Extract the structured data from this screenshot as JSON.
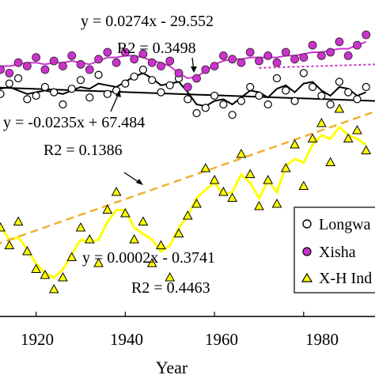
{
  "chart_data": {
    "type": "scatter",
    "xlabel": "Year",
    "xlim": [
      1908,
      1996
    ],
    "x_ticks": [
      1920,
      1940,
      1960,
      1980
    ],
    "series": [
      {
        "name": "Longwa",
        "marker": "open-circle",
        "color": "#000000",
        "x": [
          1908,
          1910,
          1912,
          1914,
          1916,
          1918,
          1920,
          1922,
          1924,
          1926,
          1928,
          1930,
          1932,
          1934,
          1936,
          1938,
          1940,
          1942,
          1944,
          1946,
          1948,
          1950,
          1952,
          1954,
          1956,
          1958,
          1960,
          1962,
          1964,
          1966,
          1968,
          1970,
          1972,
          1974,
          1976,
          1978,
          1980,
          1982,
          1984,
          1986,
          1988,
          1990,
          1992,
          1994
        ],
        "y": [
          0.92,
          0.98,
          0.96,
          1.02,
          1.05,
          0.93,
          0.95,
          1.0,
          0.97,
          0.9,
          0.99,
          1.04,
          0.94,
          1.07,
          0.96,
          0.98,
          1.02,
          1.06,
          1.1,
          1.04,
          0.97,
          1.01,
          1.05,
          0.93,
          0.85,
          0.88,
          0.95,
          0.9,
          0.84,
          0.92,
          1.0,
          0.95,
          0.9,
          1.05,
          0.98,
          0.92,
          1.08,
          1.0,
          0.95,
          0.9,
          1.03,
          0.97,
          0.93,
          1.0
        ]
      },
      {
        "name": "Xisha",
        "marker": "filled-circle",
        "color": "#cc33cc",
        "x": [
          1908,
          1910,
          1912,
          1914,
          1916,
          1918,
          1920,
          1922,
          1924,
          1926,
          1928,
          1930,
          1932,
          1934,
          1936,
          1938,
          1940,
          1942,
          1944,
          1946,
          1948,
          1950,
          1952,
          1954,
          1956,
          1958,
          1960,
          1962,
          1964,
          1966,
          1968,
          1970,
          1972,
          1974,
          1976,
          1978,
          1980,
          1982,
          1984,
          1986,
          1988,
          1990,
          1992,
          1994
        ],
        "y": [
          1.12,
          1.15,
          1.1,
          1.08,
          1.14,
          1.12,
          1.17,
          1.1,
          1.15,
          1.12,
          1.18,
          1.13,
          1.1,
          1.16,
          1.2,
          1.14,
          1.2,
          1.16,
          1.19,
          1.14,
          1.12,
          1.15,
          1.08,
          1.0,
          1.05,
          1.1,
          1.12,
          1.18,
          1.16,
          1.14,
          1.2,
          1.15,
          1.18,
          1.14,
          1.2,
          1.16,
          1.17,
          1.24,
          1.18,
          1.2,
          1.26,
          1.18,
          1.24,
          1.3
        ]
      },
      {
        "name": "X-H Ind",
        "marker": "yellow-triangle",
        "color": "#ffff00",
        "x": [
          1908,
          1910,
          1912,
          1914,
          1916,
          1918,
          1920,
          1922,
          1924,
          1926,
          1928,
          1930,
          1932,
          1934,
          1936,
          1938,
          1940,
          1942,
          1944,
          1946,
          1948,
          1950,
          1952,
          1954,
          1956,
          1958,
          1960,
          1962,
          1964,
          1966,
          1968,
          1970,
          1972,
          1974,
          1976,
          1978,
          1980,
          1982,
          1984,
          1986,
          1988,
          1990,
          1992,
          1994
        ],
        "y": [
          0.1,
          0.05,
          -0.2,
          -0.35,
          -0.15,
          -0.4,
          -0.55,
          -0.6,
          -0.72,
          -0.62,
          -0.45,
          -0.2,
          -0.3,
          -0.5,
          -0.05,
          0.1,
          -0.08,
          -0.3,
          -0.15,
          -0.5,
          -0.35,
          -0.62,
          -0.25,
          -0.1,
          0.0,
          0.3,
          0.2,
          0.1,
          0.05,
          0.42,
          0.25,
          -0.02,
          0.2,
          0.0,
          0.3,
          0.5,
          0.15,
          0.55,
          0.68,
          0.35,
          0.8,
          0.55,
          0.62,
          0.45
        ]
      }
    ],
    "smoothed_lines": [
      {
        "series": "Longwa",
        "color": "#000000",
        "x": [
          1908,
          1910,
          1912,
          1914,
          1916,
          1918,
          1920,
          1922,
          1924,
          1926,
          1928,
          1930,
          1932,
          1934,
          1936,
          1938,
          1940,
          1942,
          1944,
          1946,
          1948,
          1950,
          1952,
          1954,
          1956,
          1958,
          1960,
          1962,
          1964,
          1966,
          1968,
          1970,
          1972,
          1974,
          1976,
          1978,
          1980,
          1982,
          1984,
          1986,
          1988,
          1990,
          1992,
          1994
        ],
        "y": [
          0.96,
          0.97,
          0.99,
          1.0,
          0.98,
          0.96,
          0.97,
          0.98,
          0.97,
          0.96,
          0.98,
          1.0,
          0.99,
          1.02,
          1.01,
          1.0,
          1.03,
          1.06,
          1.08,
          1.05,
          1.01,
          1.02,
          1.03,
          0.97,
          0.9,
          0.89,
          0.92,
          0.93,
          0.9,
          0.94,
          0.98,
          0.97,
          0.94,
          0.99,
          1.01,
          0.97,
          1.02,
          1.03,
          0.98,
          0.95,
          1.0,
          0.99,
          0.95,
          0.97
        ]
      },
      {
        "series": "Xisha",
        "color": "#cc33cc",
        "x": [
          1908,
          1910,
          1912,
          1914,
          1916,
          1918,
          1920,
          1922,
          1924,
          1926,
          1928,
          1930,
          1932,
          1934,
          1936,
          1938,
          1940,
          1942,
          1944,
          1946,
          1948,
          1950,
          1952,
          1954,
          1956,
          1958,
          1960,
          1962,
          1964,
          1966,
          1968,
          1970,
          1972,
          1974,
          1976,
          1978,
          1980,
          1982,
          1984,
          1986,
          1988,
          1990,
          1992,
          1994
        ],
        "y": [
          1.13,
          1.13,
          1.12,
          1.12,
          1.13,
          1.14,
          1.14,
          1.13,
          1.14,
          1.14,
          1.15,
          1.14,
          1.13,
          1.15,
          1.17,
          1.17,
          1.18,
          1.18,
          1.17,
          1.15,
          1.14,
          1.12,
          1.08,
          1.05,
          1.06,
          1.09,
          1.13,
          1.15,
          1.16,
          1.16,
          1.17,
          1.17,
          1.17,
          1.17,
          1.18,
          1.18,
          1.19,
          1.2,
          1.2,
          1.21,
          1.22,
          1.22,
          1.24,
          1.26
        ]
      },
      {
        "series": "X-H Ind",
        "color": "#ffff00",
        "x": [
          1908,
          1910,
          1912,
          1914,
          1916,
          1918,
          1920,
          1922,
          1924,
          1926,
          1928,
          1930,
          1932,
          1934,
          1936,
          1938,
          1940,
          1942,
          1944,
          1946,
          1948,
          1950,
          1952,
          1954,
          1956,
          1958,
          1960,
          1962,
          1964,
          1966,
          1968,
          1970,
          1972,
          1974,
          1976,
          1978,
          1980,
          1982,
          1984,
          1986,
          1988,
          1990,
          1992,
          1994
        ],
        "y": [
          0.02,
          -0.05,
          -0.18,
          -0.3,
          -0.28,
          -0.38,
          -0.5,
          -0.58,
          -0.62,
          -0.55,
          -0.42,
          -0.3,
          -0.32,
          -0.3,
          -0.15,
          -0.05,
          -0.05,
          -0.2,
          -0.25,
          -0.3,
          -0.4,
          -0.35,
          -0.2,
          -0.1,
          0.05,
          0.12,
          0.18,
          0.08,
          0.1,
          0.25,
          0.18,
          0.05,
          0.2,
          0.1,
          0.32,
          0.38,
          0.35,
          0.5,
          0.58,
          0.55,
          0.65,
          0.58,
          0.55,
          0.5
        ]
      }
    ],
    "trendlines": [
      {
        "series": "Xisha",
        "color": "#cc33cc",
        "style": "dotted",
        "slope": 0.0274,
        "intercept": -29.552
      },
      {
        "series": "Longwa",
        "color": "#000000",
        "style": "solid",
        "slope": -0.0235,
        "intercept": 67.484
      },
      {
        "series": "X-H Ind",
        "color": "#f0b030",
        "style": "dashed",
        "x": [
          1908,
          1996
        ],
        "y": [
          -0.38,
          0.78
        ]
      }
    ],
    "annotations": [
      {
        "text": "y = 0.0274x - 29.552",
        "italic_x": true
      },
      {
        "text": "R2 = 0.3498"
      },
      {
        "text": "y = -0.0235x + 67.484",
        "italic_x": true
      },
      {
        "text": "R2 = 0.1386"
      },
      {
        "text": "y = 0.0002x - 0.3741"
      },
      {
        "text": "R2 = 0.4463"
      }
    ],
    "legend": {
      "placement": "bottom-right",
      "entries": [
        "Longwa",
        "Xisha",
        "X-H Ind"
      ]
    }
  }
}
